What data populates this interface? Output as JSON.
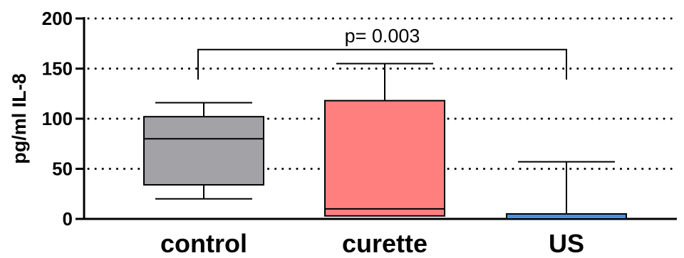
{
  "chart_data": {
    "type": "box",
    "ylabel": "pg/ml IL-8",
    "ylim": [
      0,
      200
    ],
    "yticks": [
      0,
      50,
      100,
      150,
      200
    ],
    "grid": "horizontal-dotted",
    "categories": [
      "control",
      "curette",
      "US"
    ],
    "boxes": [
      {
        "category": "control",
        "min": 20,
        "q1": 34,
        "median": 80,
        "q3": 102,
        "max": 116,
        "color": "#a3a2a6"
      },
      {
        "category": "curette",
        "min": 3,
        "q1": 3,
        "median": 10,
        "q3": 118,
        "max": 155,
        "color": "#ff7f7f"
      },
      {
        "category": "US",
        "min": 0,
        "q1": 0,
        "median": 0,
        "q3": 5,
        "max": 57,
        "color": "#4a90e2"
      }
    ],
    "annotation": {
      "text": "p= 0.003",
      "from": "control",
      "to": "US",
      "y": 169,
      "drop_to": 139
    }
  }
}
